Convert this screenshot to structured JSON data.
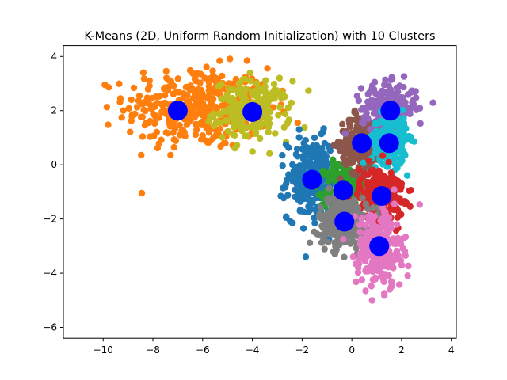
{
  "chart_data": {
    "type": "scatter",
    "title": "K-Means (2D, Uniform Random Initialization) with 10 Clusters",
    "xlabel": "",
    "ylabel": "",
    "xlim": [
      -11.6,
      4.2
    ],
    "ylim": [
      -6.4,
      4.4
    ],
    "x_ticks": [
      -10,
      -8,
      -6,
      -4,
      -2,
      0,
      2,
      4
    ],
    "y_ticks": [
      -6,
      -4,
      -2,
      0,
      2,
      4
    ],
    "x_tick_labels": [
      "−10",
      "−8",
      "−6",
      "−4",
      "−2",
      "0",
      "2",
      "4"
    ],
    "y_tick_labels": [
      "−6",
      "−4",
      "−2",
      "0",
      "2",
      "4"
    ],
    "grid": false,
    "legend": "none",
    "clusters": [
      {
        "color": "#ff7f0e",
        "center": [
          -6.2,
          2.1
        ],
        "spread": [
          1.45,
          0.75
        ],
        "count": 360
      },
      {
        "color": "#bcbd22",
        "center": [
          -4.0,
          2.0
        ],
        "spread": [
          0.75,
          0.55
        ],
        "count": 200
      },
      {
        "color": "#1f77b4",
        "center": [
          -1.6,
          -0.5
        ],
        "spread": [
          0.5,
          0.75
        ],
        "count": 260
      },
      {
        "color": "#2ca02c",
        "center": [
          -0.35,
          -0.95
        ],
        "spread": [
          0.35,
          0.55
        ],
        "count": 200
      },
      {
        "color": "#8c564b",
        "center": [
          0.35,
          0.8
        ],
        "spread": [
          0.4,
          0.55
        ],
        "count": 220
      },
      {
        "color": "#9467bd",
        "center": [
          1.5,
          2.1
        ],
        "spread": [
          0.55,
          0.45
        ],
        "count": 220
      },
      {
        "color": "#17becf",
        "center": [
          1.5,
          0.9
        ],
        "spread": [
          0.35,
          0.45
        ],
        "count": 220
      },
      {
        "color": "#d62728",
        "center": [
          1.2,
          -1.1
        ],
        "spread": [
          0.45,
          0.5
        ],
        "count": 240
      },
      {
        "color": "#7f7f7f",
        "center": [
          -0.35,
          -2.1
        ],
        "spread": [
          0.5,
          0.45
        ],
        "count": 260
      },
      {
        "color": "#e377c2",
        "center": [
          1.1,
          -3.1
        ],
        "spread": [
          0.45,
          0.75
        ],
        "count": 260
      }
    ],
    "centroids": {
      "color": "#0000ff",
      "points": [
        [
          -7.0,
          2.0
        ],
        [
          -4.0,
          1.95
        ],
        [
          -1.6,
          -0.55
        ],
        [
          -0.35,
          -0.95
        ],
        [
          0.4,
          0.8
        ],
        [
          1.55,
          2.0
        ],
        [
          1.5,
          0.8
        ],
        [
          1.2,
          -1.15
        ],
        [
          -0.3,
          -2.1
        ],
        [
          1.1,
          -3.0
        ]
      ]
    }
  }
}
